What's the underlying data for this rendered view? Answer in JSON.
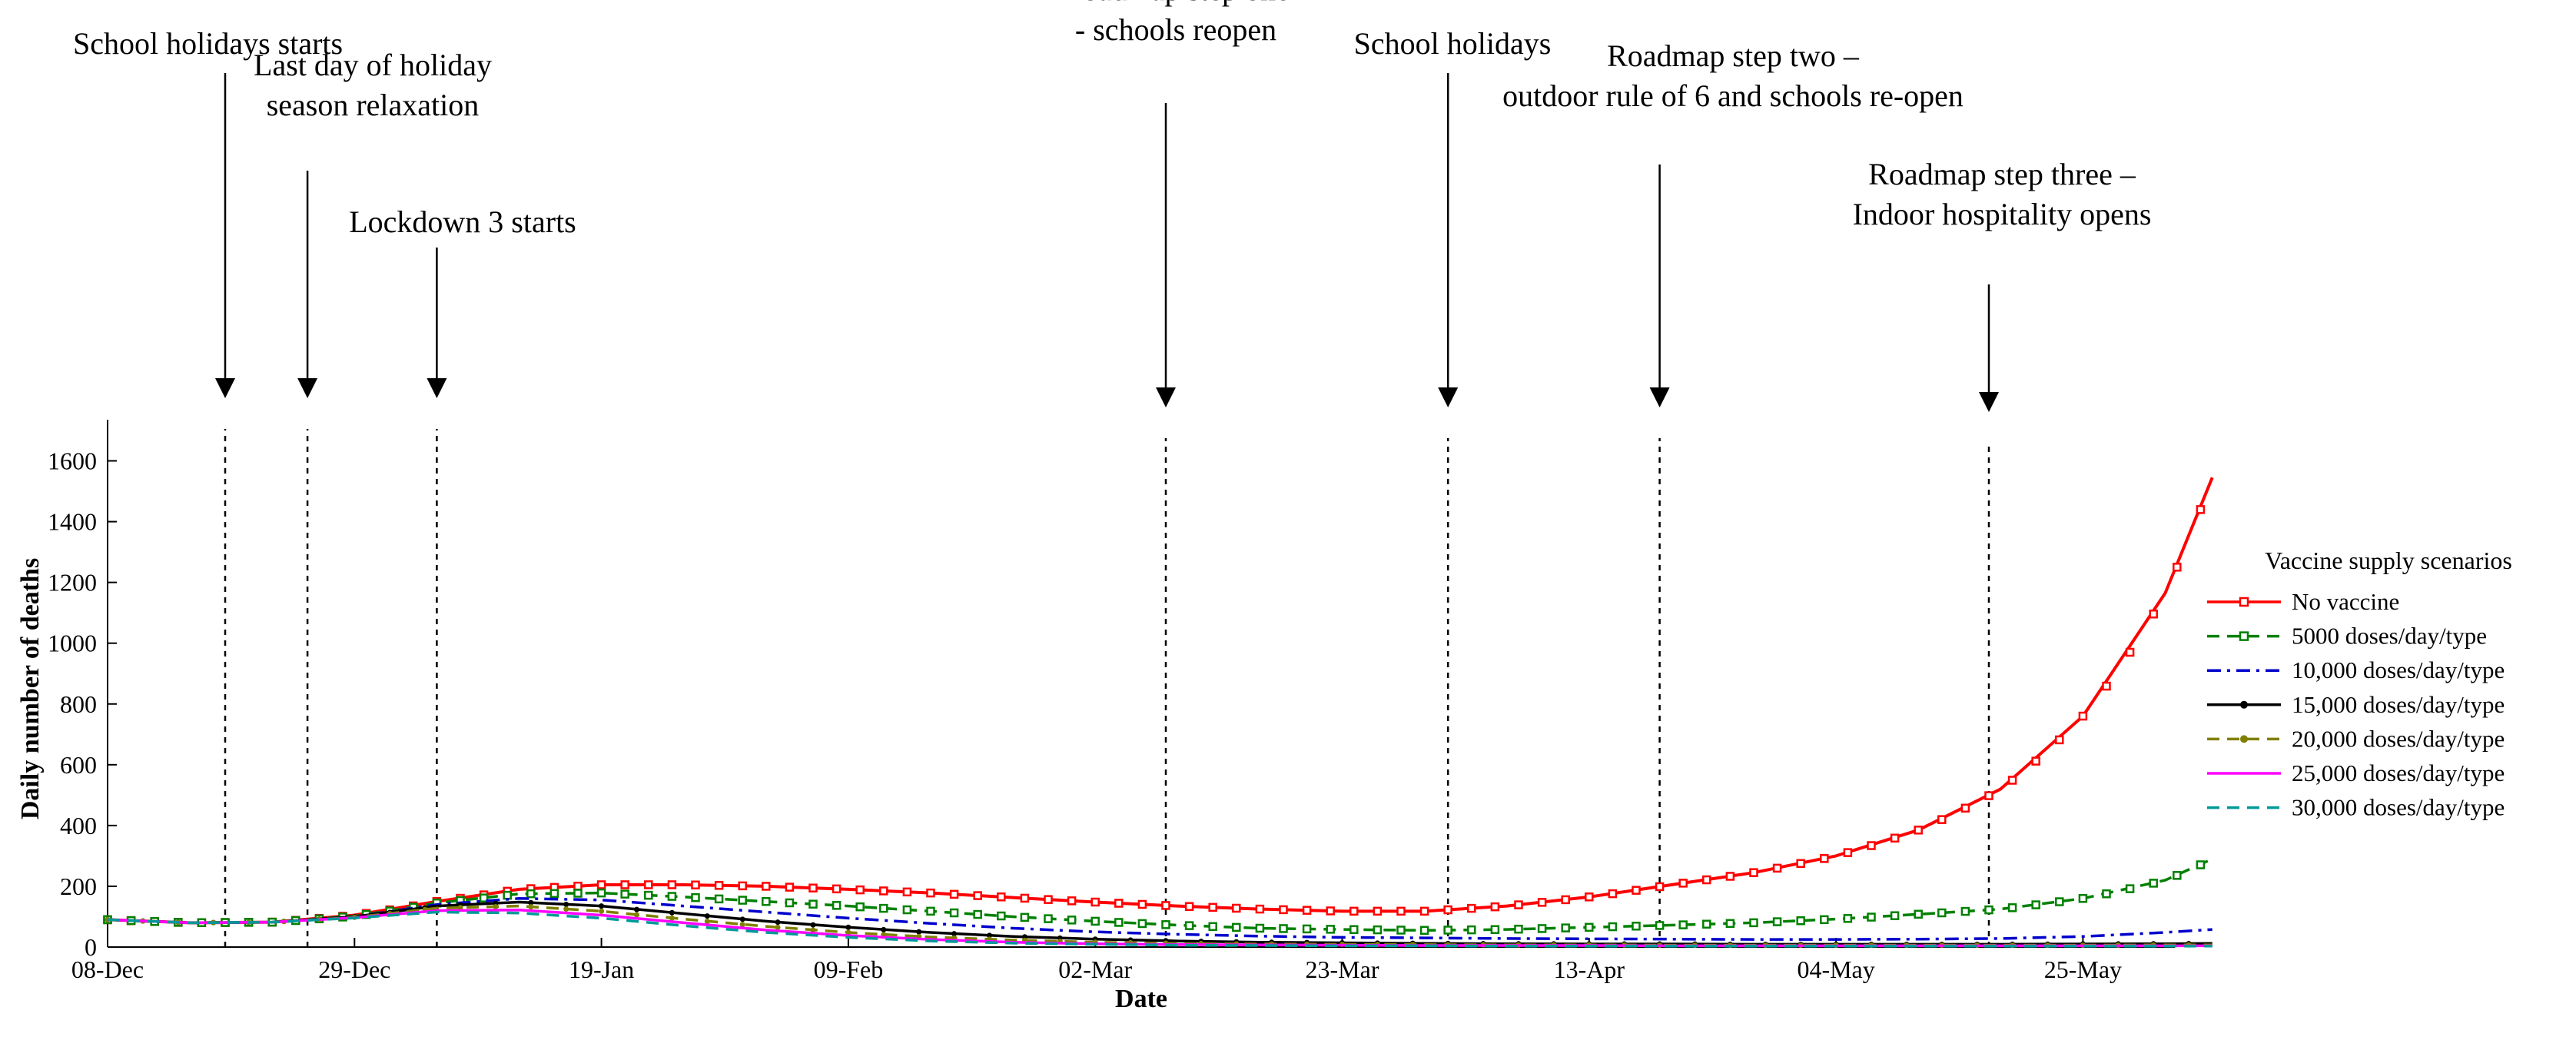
{
  "chart_data": {
    "type": "line",
    "title": "",
    "xlabel": "Date",
    "ylabel": "Daily number of deaths",
    "ylim": [
      0,
      1700
    ],
    "xlim": [
      "2020-12-08",
      "2021-06-02"
    ],
    "x_ticks": [
      {
        "date": "2020-12-08",
        "label": "08-Dec"
      },
      {
        "date": "2020-12-29",
        "label": "29-Dec"
      },
      {
        "date": "2021-01-19",
        "label": "19-Jan"
      },
      {
        "date": "2021-02-09",
        "label": "09-Feb"
      },
      {
        "date": "2021-03-02",
        "label": "02-Mar"
      },
      {
        "date": "2021-03-23",
        "label": "23-Mar"
      },
      {
        "date": "2021-04-13",
        "label": "13-Apr"
      },
      {
        "date": "2021-05-04",
        "label": "04-May"
      },
      {
        "date": "2021-05-25",
        "label": "25-May"
      }
    ],
    "y_ticks": [
      0,
      200,
      400,
      600,
      800,
      1000,
      1200,
      1400,
      1600
    ],
    "grid": false,
    "legend": {
      "title": "Vaccine supply scenarios",
      "placement": "right"
    },
    "series": [
      {
        "name": "No vaccine",
        "color": "#ff0000",
        "dash": "solid",
        "marker": "square",
        "points": [
          [
            "2020-12-08",
            90
          ],
          [
            "2020-12-15",
            80
          ],
          [
            "2020-12-22",
            82
          ],
          [
            "2020-12-29",
            105
          ],
          [
            "2021-01-05",
            150
          ],
          [
            "2021-01-12",
            190
          ],
          [
            "2021-01-19",
            205
          ],
          [
            "2021-01-26",
            205
          ],
          [
            "2021-02-02",
            200
          ],
          [
            "2021-02-09",
            190
          ],
          [
            "2021-02-16",
            178
          ],
          [
            "2021-02-23",
            163
          ],
          [
            "2021-03-02",
            148
          ],
          [
            "2021-03-09",
            135
          ],
          [
            "2021-03-16",
            125
          ],
          [
            "2021-03-23",
            118
          ],
          [
            "2021-03-30",
            118
          ],
          [
            "2021-04-06",
            135
          ],
          [
            "2021-04-13",
            165
          ],
          [
            "2021-04-20",
            205
          ],
          [
            "2021-04-27",
            245
          ],
          [
            "2021-05-04",
            300
          ],
          [
            "2021-05-11",
            385
          ],
          [
            "2021-05-18",
            520
          ],
          [
            "2021-05-25",
            760
          ],
          [
            "2021-06-01",
            1165
          ],
          [
            "2021-06-05",
            1545
          ]
        ]
      },
      {
        "name": "5000 doses/day/type",
        "color": "#008000",
        "dash": "dashed",
        "marker": "square",
        "points": [
          [
            "2020-12-08",
            90
          ],
          [
            "2020-12-15",
            80
          ],
          [
            "2020-12-22",
            82
          ],
          [
            "2020-12-29",
            102
          ],
          [
            "2021-01-05",
            145
          ],
          [
            "2021-01-12",
            175
          ],
          [
            "2021-01-19",
            178
          ],
          [
            "2021-01-26",
            165
          ],
          [
            "2021-02-02",
            150
          ],
          [
            "2021-02-09",
            135
          ],
          [
            "2021-02-16",
            118
          ],
          [
            "2021-02-23",
            100
          ],
          [
            "2021-03-02",
            85
          ],
          [
            "2021-03-09",
            72
          ],
          [
            "2021-03-16",
            62
          ],
          [
            "2021-03-23",
            58
          ],
          [
            "2021-03-30",
            55
          ],
          [
            "2021-04-06",
            58
          ],
          [
            "2021-04-13",
            65
          ],
          [
            "2021-04-20",
            72
          ],
          [
            "2021-04-27",
            80
          ],
          [
            "2021-05-04",
            92
          ],
          [
            "2021-05-11",
            108
          ],
          [
            "2021-05-18",
            125
          ],
          [
            "2021-05-25",
            160
          ],
          [
            "2021-06-01",
            220
          ],
          [
            "2021-06-05",
            290
          ]
        ]
      },
      {
        "name": "10,000 doses/day/type",
        "color": "#0000cc",
        "dash": "dashdot",
        "marker": "none",
        "points": [
          [
            "2020-12-08",
            90
          ],
          [
            "2020-12-15",
            80
          ],
          [
            "2020-12-22",
            82
          ],
          [
            "2020-12-29",
            100
          ],
          [
            "2021-01-05",
            140
          ],
          [
            "2021-01-12",
            160
          ],
          [
            "2021-01-19",
            155
          ],
          [
            "2021-01-26",
            135
          ],
          [
            "2021-02-02",
            115
          ],
          [
            "2021-02-09",
            95
          ],
          [
            "2021-02-16",
            78
          ],
          [
            "2021-02-23",
            62
          ],
          [
            "2021-03-02",
            50
          ],
          [
            "2021-03-09",
            42
          ],
          [
            "2021-03-16",
            36
          ],
          [
            "2021-03-23",
            32
          ],
          [
            "2021-03-30",
            30
          ],
          [
            "2021-04-06",
            28
          ],
          [
            "2021-04-13",
            27
          ],
          [
            "2021-04-20",
            26
          ],
          [
            "2021-04-27",
            25
          ],
          [
            "2021-05-04",
            25
          ],
          [
            "2021-05-11",
            26
          ],
          [
            "2021-05-18",
            28
          ],
          [
            "2021-05-25",
            35
          ],
          [
            "2021-06-01",
            48
          ],
          [
            "2021-06-05",
            58
          ]
        ]
      },
      {
        "name": "15,000 doses/day/type",
        "color": "#000000",
        "dash": "solid",
        "marker": "dot",
        "points": [
          [
            "2020-12-08",
            90
          ],
          [
            "2020-12-15",
            80
          ],
          [
            "2020-12-22",
            82
          ],
          [
            "2020-12-29",
            100
          ],
          [
            "2021-01-05",
            135
          ],
          [
            "2021-01-12",
            148
          ],
          [
            "2021-01-19",
            135
          ],
          [
            "2021-01-26",
            110
          ],
          [
            "2021-02-02",
            85
          ],
          [
            "2021-02-09",
            65
          ],
          [
            "2021-02-16",
            48
          ],
          [
            "2021-02-23",
            35
          ],
          [
            "2021-03-02",
            26
          ],
          [
            "2021-03-09",
            20
          ],
          [
            "2021-03-16",
            16
          ],
          [
            "2021-03-23",
            14
          ],
          [
            "2021-03-30",
            12
          ],
          [
            "2021-04-06",
            11
          ],
          [
            "2021-04-13",
            10
          ],
          [
            "2021-04-20",
            10
          ],
          [
            "2021-04-27",
            9
          ],
          [
            "2021-05-04",
            9
          ],
          [
            "2021-05-11",
            9
          ],
          [
            "2021-05-18",
            9
          ],
          [
            "2021-05-25",
            10
          ],
          [
            "2021-06-01",
            11
          ],
          [
            "2021-06-05",
            12
          ]
        ]
      },
      {
        "name": "20,000 doses/day/type",
        "color": "#808000",
        "dash": "dashed",
        "marker": "dot",
        "points": [
          [
            "2020-12-08",
            90
          ],
          [
            "2020-12-15",
            80
          ],
          [
            "2020-12-22",
            82
          ],
          [
            "2020-12-29",
            98
          ],
          [
            "2021-01-05",
            128
          ],
          [
            "2021-01-12",
            135
          ],
          [
            "2021-01-19",
            118
          ],
          [
            "2021-01-26",
            92
          ],
          [
            "2021-02-02",
            68
          ],
          [
            "2021-02-09",
            48
          ],
          [
            "2021-02-16",
            33
          ],
          [
            "2021-02-23",
            23
          ],
          [
            "2021-03-02",
            16
          ],
          [
            "2021-03-09",
            12
          ],
          [
            "2021-03-16",
            10
          ],
          [
            "2021-03-23",
            9
          ],
          [
            "2021-03-30",
            8
          ],
          [
            "2021-04-06",
            7
          ],
          [
            "2021-04-13",
            7
          ],
          [
            "2021-04-20",
            6
          ],
          [
            "2021-04-27",
            6
          ],
          [
            "2021-05-04",
            6
          ],
          [
            "2021-05-11",
            6
          ],
          [
            "2021-05-18",
            6
          ],
          [
            "2021-05-25",
            6
          ],
          [
            "2021-06-01",
            7
          ],
          [
            "2021-06-05",
            7
          ]
        ]
      },
      {
        "name": "25,000 doses/day/type",
        "color": "#ff00ff",
        "dash": "solid",
        "marker": "none",
        "points": [
          [
            "2020-12-08",
            90
          ],
          [
            "2020-12-15",
            80
          ],
          [
            "2020-12-22",
            82
          ],
          [
            "2020-12-29",
            97
          ],
          [
            "2021-01-05",
            120
          ],
          [
            "2021-01-12",
            122
          ],
          [
            "2021-01-19",
            105
          ],
          [
            "2021-01-26",
            80
          ],
          [
            "2021-02-02",
            56
          ],
          [
            "2021-02-09",
            38
          ],
          [
            "2021-02-16",
            25
          ],
          [
            "2021-02-23",
            16
          ],
          [
            "2021-03-02",
            11
          ],
          [
            "2021-03-09",
            8
          ],
          [
            "2021-03-16",
            7
          ],
          [
            "2021-03-23",
            6
          ],
          [
            "2021-03-30",
            5
          ],
          [
            "2021-04-06",
            5
          ],
          [
            "2021-04-13",
            5
          ],
          [
            "2021-04-20",
            4
          ],
          [
            "2021-04-27",
            4
          ],
          [
            "2021-05-04",
            4
          ],
          [
            "2021-05-11",
            4
          ],
          [
            "2021-05-18",
            4
          ],
          [
            "2021-05-25",
            4
          ],
          [
            "2021-06-01",
            4
          ],
          [
            "2021-06-05",
            4
          ]
        ]
      },
      {
        "name": "30,000 doses/day/type",
        "color": "#009999",
        "dash": "dashed",
        "marker": "none",
        "points": [
          [
            "2020-12-08",
            90
          ],
          [
            "2020-12-15",
            80
          ],
          [
            "2020-12-22",
            82
          ],
          [
            "2020-12-29",
            96
          ],
          [
            "2021-01-05",
            115
          ],
          [
            "2021-01-12",
            112
          ],
          [
            "2021-01-19",
            95
          ],
          [
            "2021-01-26",
            70
          ],
          [
            "2021-02-02",
            48
          ],
          [
            "2021-02-09",
            32
          ],
          [
            "2021-02-16",
            20
          ],
          [
            "2021-02-23",
            13
          ],
          [
            "2021-03-02",
            9
          ],
          [
            "2021-03-09",
            6
          ],
          [
            "2021-03-16",
            5
          ],
          [
            "2021-03-23",
            4
          ],
          [
            "2021-03-30",
            4
          ],
          [
            "2021-04-06",
            3
          ],
          [
            "2021-04-13",
            3
          ],
          [
            "2021-04-20",
            3
          ],
          [
            "2021-04-27",
            3
          ],
          [
            "2021-05-04",
            3
          ],
          [
            "2021-05-11",
            3
          ],
          [
            "2021-05-18",
            3
          ],
          [
            "2021-05-25",
            3
          ],
          [
            "2021-06-01",
            3
          ],
          [
            "2021-06-05",
            3
          ]
        ]
      }
    ],
    "annotations": [
      {
        "date": "2020-12-18",
        "lines": [
          "School holidays starts"
        ]
      },
      {
        "date": "2020-12-25",
        "lines": [
          "Last day of holiday",
          "season relaxation"
        ]
      },
      {
        "date": "2021-01-05",
        "lines": [
          "Lockdown 3 starts"
        ]
      },
      {
        "date": "2021-03-08",
        "lines": [
          "Roadmap step one",
          "- schools reopen"
        ]
      },
      {
        "date": "2021-04-01",
        "lines": [
          "School holidays"
        ]
      },
      {
        "date": "2021-04-19",
        "lines": [
          "Roadmap step two –",
          "outdoor rule of 6 and schools re-open"
        ]
      },
      {
        "date": "2021-05-17",
        "lines": [
          "Roadmap step three –",
          "Indoor hospitality opens"
        ]
      }
    ]
  }
}
